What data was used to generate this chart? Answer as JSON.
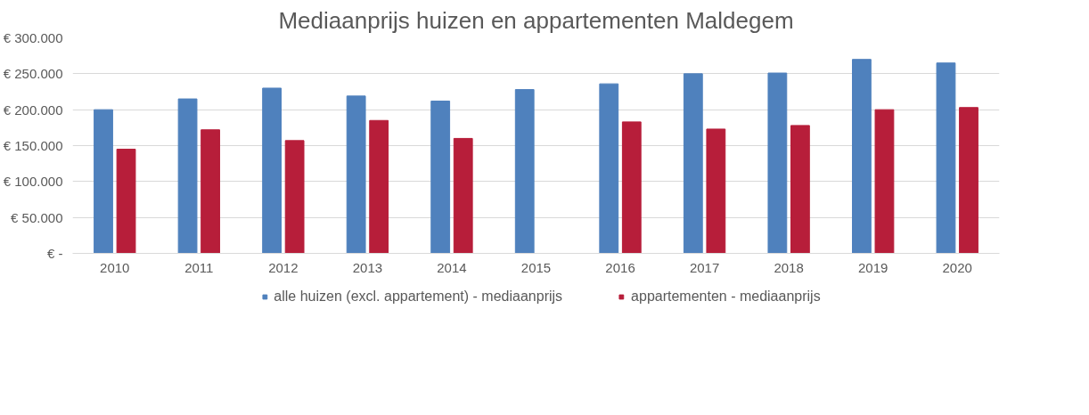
{
  "chart_data": {
    "type": "bar",
    "title": "Mediaanprijs huizen en appartementen Maldegem",
    "categories": [
      "2010",
      "2011",
      "2012",
      "2013",
      "2014",
      "2015",
      "2016",
      "2017",
      "2018",
      "2019",
      "2020"
    ],
    "series": [
      {
        "name": "alle huizen (excl. appartement) - mediaanprijs",
        "color": "#4f81bd",
        "values": [
          200000,
          215000,
          230000,
          219000,
          212000,
          228000,
          236000,
          250000,
          251000,
          270000,
          265000
        ]
      },
      {
        "name": "appartementen - mediaanprijs",
        "color": "#b71e3a",
        "values": [
          145000,
          172000,
          157000,
          185000,
          160000,
          null,
          183000,
          173000,
          178000,
          200000,
          203000
        ]
      }
    ],
    "ylim": [
      0,
      300000
    ],
    "yticks": [
      {
        "value": 0,
        "label": "€ -"
      },
      {
        "value": 50000,
        "label": "€ 50.000"
      },
      {
        "value": 100000,
        "label": "€ 100.000"
      },
      {
        "value": 150000,
        "label": "€ 150.000"
      },
      {
        "value": 200000,
        "label": "€ 200.000"
      },
      {
        "value": 250000,
        "label": "€ 250.000"
      },
      {
        "value": 300000,
        "label": "€ 300.000"
      }
    ],
    "grid": "y",
    "legend": "bottom"
  }
}
